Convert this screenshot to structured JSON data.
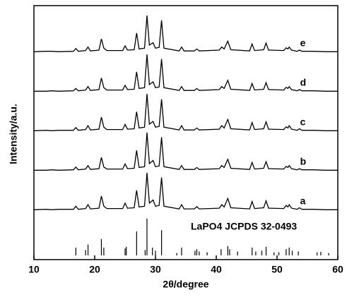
{
  "chart_data": {
    "type": "line",
    "xlabel": "2θ/degree",
    "ylabel": "Intensity/a.u.",
    "xlim": [
      10,
      60
    ],
    "xticks": [
      10,
      20,
      30,
      40,
      50,
      60
    ],
    "ylim": [
      0,
      100
    ],
    "x": [
      10,
      12,
      13,
      14,
      16.5,
      16.9,
      17.3,
      18.5,
      18.9,
      19.3,
      20.7,
      21.1,
      21.5,
      22,
      24.6,
      25.0,
      25.4,
      26.5,
      26.9,
      27.3,
      28.2,
      28.6,
      29.0,
      29.6,
      30.0,
      30.6,
      31.0,
      31.4,
      33.9,
      34.3,
      34.7,
      36.4,
      36.8,
      37.2,
      40.5,
      40.9,
      41.3,
      41.9,
      42.4,
      45.5,
      45.9,
      46.3,
      47.8,
      48.2,
      48.6,
      51.1,
      51.5,
      51.8,
      52.0,
      52.4,
      53.3,
      53.7,
      54.1,
      56,
      58,
      60
    ],
    "series": [
      {
        "name": "a",
        "color": "#000000",
        "values": [
          5,
          6,
          5,
          6,
          6,
          14,
          6,
          8,
          18,
          7,
          9,
          40,
          14,
          8,
          8,
          22,
          9,
          10,
          55,
          12,
          14,
          100,
          22,
          30,
          14,
          16,
          88,
          14,
          7,
          18,
          7,
          7,
          13,
          7,
          9,
          18,
          12,
          34,
          10,
          7,
          26,
          8,
          10,
          28,
          9,
          8,
          16,
          12,
          18,
          9,
          6,
          10,
          6,
          6,
          5,
          5
        ]
      },
      {
        "name": "b",
        "color": "#000000",
        "values": [
          5,
          5,
          6,
          5,
          6,
          13,
          6,
          8,
          17,
          7,
          9,
          38,
          13,
          8,
          8,
          21,
          9,
          10,
          56,
          12,
          14,
          102,
          22,
          30,
          14,
          16,
          90,
          14,
          7,
          17,
          7,
          7,
          12,
          7,
          9,
          17,
          12,
          33,
          10,
          7,
          25,
          8,
          10,
          27,
          9,
          8,
          15,
          12,
          17,
          9,
          6,
          9,
          6,
          6,
          5,
          5
        ]
      },
      {
        "name": "c",
        "color": "#000000",
        "values": [
          5,
          6,
          5,
          6,
          6,
          13,
          6,
          8,
          18,
          7,
          9,
          40,
          14,
          8,
          8,
          21,
          9,
          10,
          54,
          12,
          14,
          100,
          22,
          29,
          14,
          16,
          86,
          14,
          7,
          18,
          7,
          7,
          12,
          7,
          9,
          18,
          12,
          34,
          10,
          7,
          26,
          8,
          10,
          28,
          9,
          8,
          15,
          12,
          18,
          9,
          6,
          10,
          6,
          6,
          5,
          5
        ]
      },
      {
        "name": "d",
        "color": "#000000",
        "values": [
          5,
          5,
          6,
          5,
          6,
          12,
          6,
          8,
          17,
          7,
          9,
          39,
          14,
          8,
          8,
          20,
          9,
          10,
          55,
          12,
          14,
          100,
          22,
          29,
          14,
          16,
          88,
          14,
          7,
          17,
          7,
          7,
          12,
          7,
          9,
          17,
          12,
          33,
          10,
          7,
          25,
          8,
          10,
          27,
          9,
          8,
          15,
          12,
          17,
          9,
          6,
          9,
          6,
          6,
          5,
          5
        ]
      },
      {
        "name": "e",
        "color": "#000000",
        "values": [
          5,
          6,
          6,
          5,
          6,
          13,
          6,
          8,
          17,
          7,
          9,
          38,
          14,
          8,
          8,
          20,
          9,
          10,
          53,
          12,
          14,
          98,
          22,
          28,
          14,
          16,
          86,
          14,
          7,
          17,
          7,
          7,
          12,
          7,
          9,
          17,
          12,
          32,
          10,
          7,
          25,
          8,
          10,
          27,
          9,
          8,
          15,
          12,
          17,
          9,
          6,
          9,
          6,
          6,
          5,
          5
        ]
      }
    ],
    "reference": {
      "name": "LaPO4 JCPDS 32-0493",
      "color": "#000000",
      "x": [
        16.9,
        18.5,
        18.9,
        21.1,
        21.5,
        25.0,
        25.2,
        26.9,
        28.3,
        28.6,
        29.5,
        30.0,
        31.0,
        33.5,
        34.3,
        36.5,
        36.8,
        37.2,
        38.5,
        40.8,
        41.9,
        42.2,
        43.5,
        45.9,
        46.5,
        47.5,
        48.2,
        49.5,
        50.3,
        51.5,
        52.0,
        52.5,
        53.5,
        56.6,
        57.2,
        58.5
      ],
      "values": [
        20,
        14,
        28,
        42,
        20,
        18,
        22,
        62,
        14,
        95,
        20,
        12,
        65,
        6,
        20,
        12,
        16,
        10,
        8,
        16,
        24,
        16,
        10,
        20,
        10,
        12,
        22,
        8,
        8,
        16,
        20,
        12,
        10,
        8,
        9,
        6
      ]
    }
  }
}
